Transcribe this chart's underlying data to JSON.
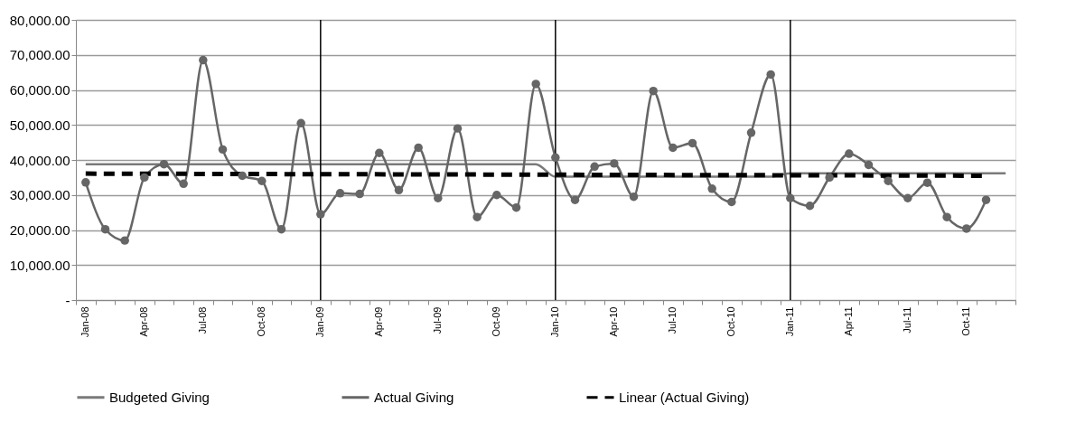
{
  "chart_data": {
    "type": "line",
    "categories": [
      "Jan-08",
      null,
      null,
      "Apr-08",
      null,
      null,
      "Jul-08",
      null,
      null,
      "Oct-08",
      null,
      null,
      "Jan-09",
      null,
      null,
      "Apr-09",
      null,
      null,
      "Jul-09",
      null,
      null,
      "Oct-09",
      null,
      null,
      "Jan-10",
      null,
      null,
      "Apr-10",
      null,
      null,
      "Jul-10",
      null,
      null,
      "Oct-10",
      null,
      null,
      "Jan-11",
      null,
      null,
      "Apr-11",
      null,
      null,
      "Jul-11",
      null,
      null,
      "Oct-11",
      null,
      null
    ],
    "series": [
      {
        "name": "Budgeted Giving",
        "color": "#7a7a7a",
        "marker": "none",
        "line_style": "solid",
        "values": [
          38800,
          38800,
          38800,
          38800,
          38800,
          38800,
          38800,
          38800,
          38800,
          38800,
          38800,
          38800,
          38800,
          38800,
          38800,
          38800,
          38800,
          38800,
          38800,
          38800,
          38800,
          38800,
          38800,
          38800,
          35200,
          35200,
          35200,
          35200,
          35200,
          35200,
          35200,
          35200,
          35200,
          35200,
          35200,
          35200,
          36200,
          36200,
          36200,
          36200,
          36200,
          36200,
          36200,
          36200,
          36200,
          36200,
          36200,
          36200
        ]
      },
      {
        "name": "Actual Giving",
        "color": "#666666",
        "marker": "circle",
        "line_style": "solid",
        "values": [
          33600,
          20200,
          17000,
          35000,
          38800,
          33200,
          68500,
          43000,
          35500,
          34000,
          20200,
          50500,
          24500,
          30500,
          30300,
          42000,
          31400,
          43500,
          29100,
          49000,
          23700,
          30000,
          26400,
          61700,
          40700,
          28600,
          38100,
          39000,
          29500,
          59700,
          43500,
          44800,
          31800,
          28000,
          47800,
          64400,
          29100,
          26900,
          35000,
          41800,
          38600,
          34000,
          29100,
          33500,
          23700,
          20400,
          28600,
          null
        ]
      },
      {
        "name": "Linear (Actual Giving)",
        "color": "#000000",
        "marker": "none",
        "line_style": "dashed",
        "values": [
          36100,
          null,
          null,
          null,
          null,
          null,
          null,
          null,
          null,
          null,
          null,
          null,
          null,
          null,
          null,
          null,
          null,
          null,
          null,
          null,
          null,
          null,
          null,
          null,
          null,
          null,
          null,
          null,
          null,
          null,
          null,
          null,
          null,
          null,
          null,
          null,
          null,
          null,
          null,
          null,
          null,
          null,
          null,
          null,
          null,
          null,
          35500,
          null
        ]
      }
    ],
    "ylim": [
      0,
      80000
    ],
    "yticks": [
      {
        "value": 0,
        "label": "-"
      },
      {
        "value": 10000,
        "label": "10,000.00"
      },
      {
        "value": 20000,
        "label": "20,000.00"
      },
      {
        "value": 30000,
        "label": "30,000.00"
      },
      {
        "value": 40000,
        "label": "40,000.00"
      },
      {
        "value": 50000,
        "label": "50,000.00"
      },
      {
        "value": 60000,
        "label": "60,000.00"
      },
      {
        "value": 70000,
        "label": "70,000.00"
      },
      {
        "value": 80000,
        "label": "80,000.00"
      }
    ],
    "ref_lines": [
      {
        "axis": "x",
        "value": "Jan-09",
        "color": "#000000"
      },
      {
        "axis": "x",
        "value": "Jan-10",
        "color": "#000000"
      },
      {
        "axis": "x",
        "value": "Jan-11",
        "color": "#000000"
      }
    ],
    "grid": "y",
    "legend": "bottom"
  }
}
